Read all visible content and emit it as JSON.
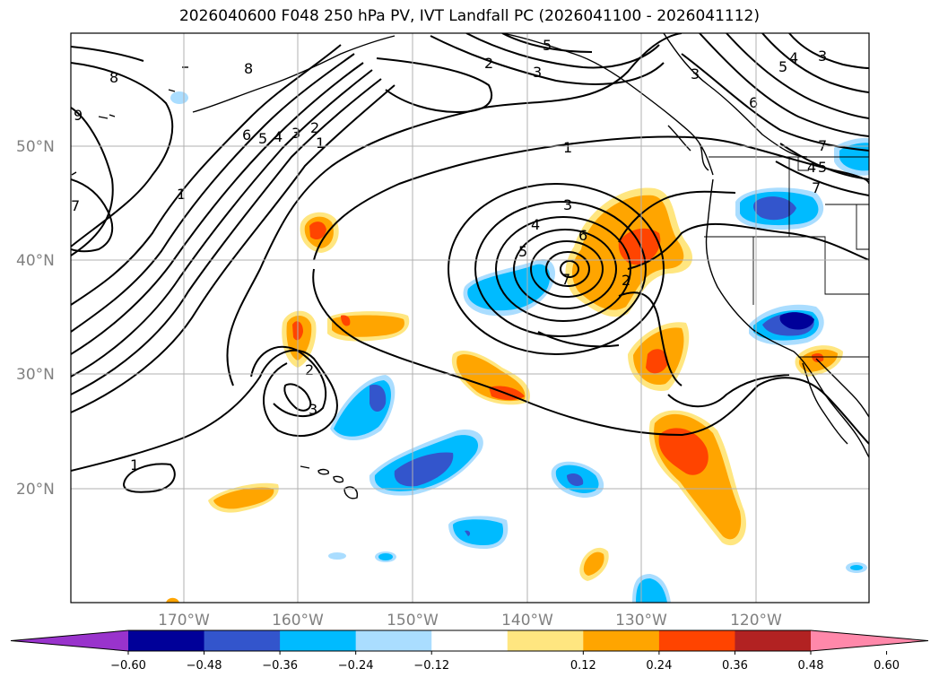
{
  "title": "2026040600 F048 250 hPa PV, IVT Landfall PC (2026041100 - 2026041112)",
  "lat_labels": [
    "50°N",
    "40°N",
    "30°N",
    "20°N"
  ],
  "lon_labels": [
    "170°W",
    "160°W",
    "150°W",
    "140°W",
    "130°W",
    "120°W"
  ],
  "colorbar": {
    "ticks": [
      "−0.60",
      "−0.48",
      "−0.36",
      "−0.24",
      "−0.12",
      "0.12",
      "0.24",
      "0.36",
      "0.48",
      "0.60"
    ],
    "colors": [
      "#9933cc",
      "#000099",
      "#3355cc",
      "#00bbff",
      "#aaddff",
      "#ffffff",
      "#ffe680",
      "#ffa500",
      "#ff4400",
      "#b22222",
      "#ff88aa"
    ]
  },
  "contour_labels": [
    "8",
    "9",
    "6",
    "5",
    "4",
    "3",
    "2",
    "1",
    "7",
    "2",
    "3",
    "1",
    "3",
    "4",
    "5",
    "6",
    "7",
    "2",
    "2",
    "3",
    "1",
    "5",
    "4",
    "3",
    "6",
    "3",
    "7",
    "4",
    "5",
    "7"
  ],
  "colors": {
    "blue_light": "#aaddff",
    "blue": "#00bbff",
    "blue_mid": "#3355cc",
    "blue_dark": "#000099",
    "yellow": "#ffe680",
    "orange": "#ffa500",
    "red": "#ff4400"
  }
}
